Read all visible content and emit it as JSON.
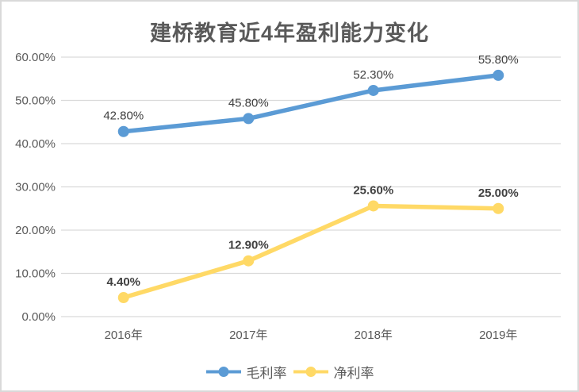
{
  "title": "建桥教育近4年盈利能力变化",
  "colors": {
    "gross_margin": "#5B9BD5",
    "net_margin": "#FFD966",
    "gridline": "#D9D9D9",
    "axis_text": "#595959",
    "title_text": "#595959",
    "data_label": "#404040",
    "card_border": "#D9D9D9"
  },
  "legend": {
    "items": [
      {
        "key": "gross-margin",
        "label": "毛利率",
        "color": "#5B9BD5"
      },
      {
        "key": "net-margin",
        "label": "净利率",
        "color": "#FFD966"
      }
    ]
  },
  "chart_data": {
    "type": "line",
    "title": "建桥教育近4年盈利能力变化",
    "categories": [
      "2016年",
      "2017年",
      "2018年",
      "2019年"
    ],
    "series": [
      {
        "key": "gross-margin",
        "name": "毛利率",
        "values": [
          42.8,
          45.8,
          52.3,
          55.8
        ],
        "labels": [
          "42.80%",
          "45.80%",
          "52.30%",
          "55.80%"
        ],
        "color": "#5B9BD5",
        "label_bold": false
      },
      {
        "key": "net-margin",
        "name": "净利率",
        "values": [
          4.4,
          12.9,
          25.6,
          25.0
        ],
        "labels": [
          "4.40%",
          "12.90%",
          "25.60%",
          "25.00%"
        ],
        "color": "#FFD966",
        "label_bold": true
      }
    ],
    "xlabel": "",
    "ylabel": "",
    "ylim": [
      0,
      60
    ],
    "ytick_step": 10,
    "ytick_labels": [
      "0.00%",
      "10.00%",
      "20.00%",
      "30.00%",
      "40.00%",
      "50.00%",
      "60.00%"
    ],
    "grid": true,
    "legend_position": "bottom",
    "marker": "circle",
    "data_labels_position": "above"
  }
}
